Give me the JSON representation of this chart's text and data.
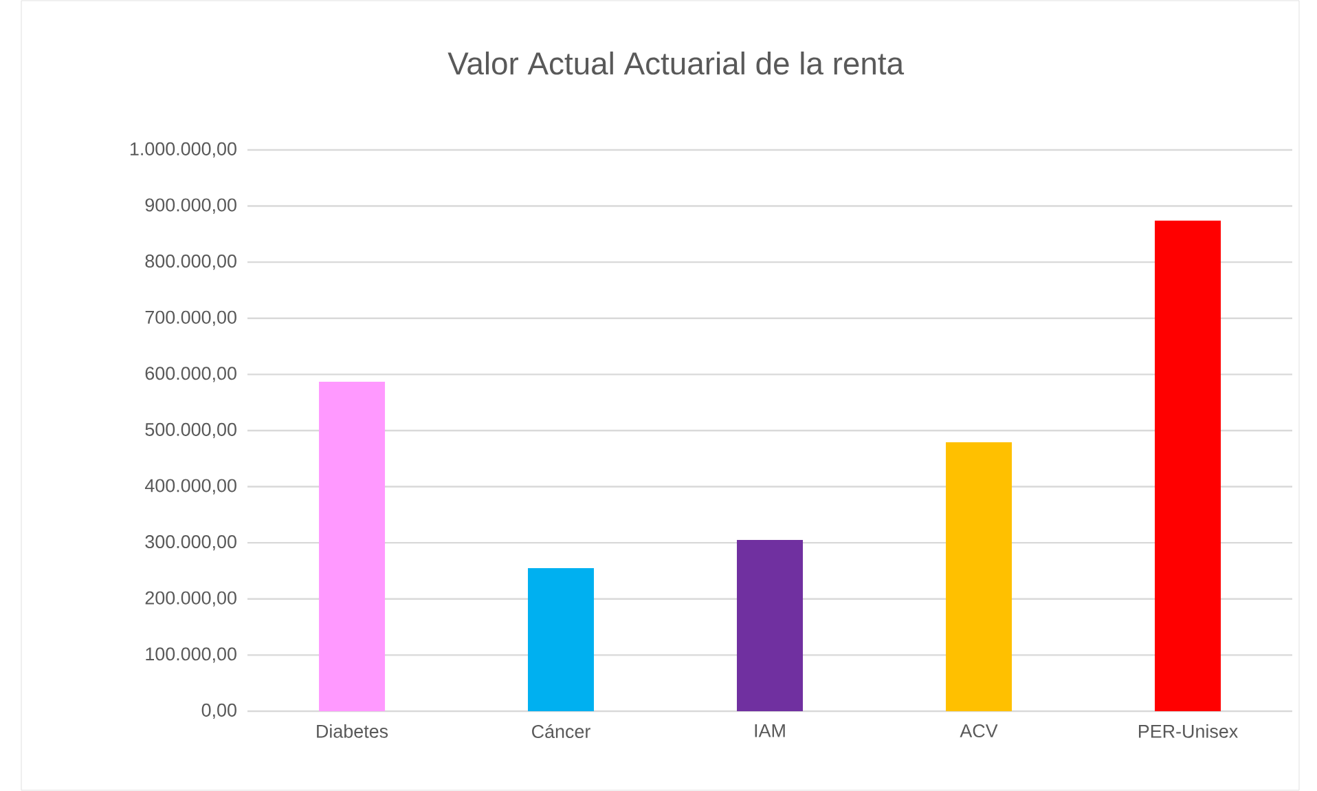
{
  "chart_data": {
    "type": "bar",
    "title": "Valor Actual Actuarial de la renta",
    "categories": [
      "Diabetes",
      "Cáncer",
      "IAM",
      "ACV",
      "PER-Unisex"
    ],
    "values": [
      587000,
      255000,
      305000,
      479000,
      874000
    ],
    "colors": [
      "#ff99ff",
      "#00b0f0",
      "#7030a0",
      "#ffc000",
      "#ff0000"
    ],
    "ylim": [
      0,
      1000000
    ],
    "yticks": [
      {
        "value": 0,
        "label": "0,00"
      },
      {
        "value": 100000,
        "label": "100.000,00"
      },
      {
        "value": 200000,
        "label": "200.000,00"
      },
      {
        "value": 300000,
        "label": "300.000,00"
      },
      {
        "value": 400000,
        "label": "400.000,00"
      },
      {
        "value": 500000,
        "label": "500.000,00"
      },
      {
        "value": 600000,
        "label": "600.000,00"
      },
      {
        "value": 700000,
        "label": "700.000,00"
      },
      {
        "value": 800000,
        "label": "800.000,00"
      },
      {
        "value": 900000,
        "label": "900.000,00"
      },
      {
        "value": 1000000,
        "label": "1.000.000,00"
      }
    ],
    "grid": "y"
  }
}
